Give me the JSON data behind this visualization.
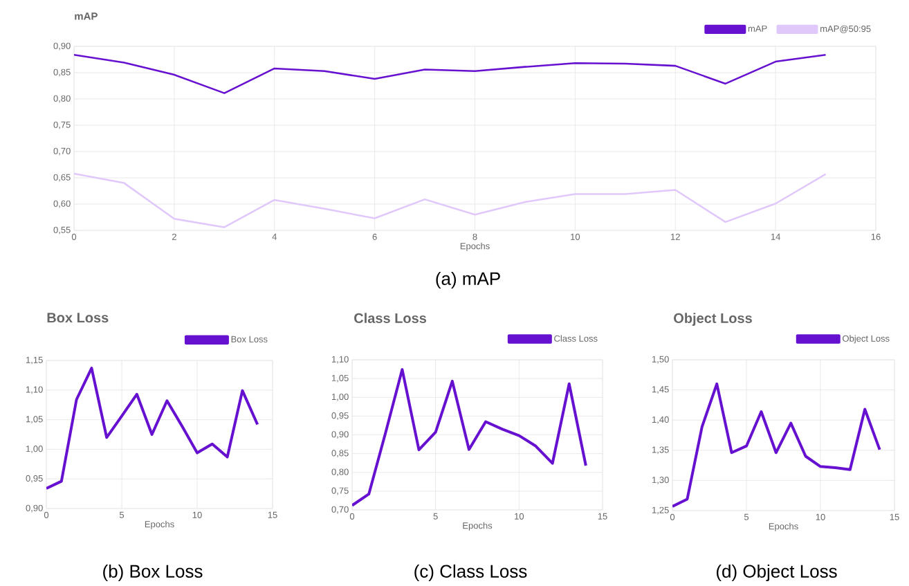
{
  "chart_data": [
    {
      "type": "line",
      "title": "mAP",
      "xlabel": "Epochs",
      "x": [
        0,
        1,
        2,
        3,
        4,
        5,
        6,
        7,
        8,
        9,
        10,
        11,
        12,
        13,
        14,
        15
      ],
      "series": [
        {
          "name": "mAP",
          "color": "#6610d0",
          "values": [
            0.884,
            0.869,
            0.846,
            0.811,
            0.858,
            0.853,
            0.838,
            0.856,
            0.853,
            0.861,
            0.868,
            0.867,
            0.863,
            0.829,
            0.871,
            0.884
          ]
        },
        {
          "name": "mAP@50:95",
          "color": "#e0c8fa",
          "values": [
            0.658,
            0.64,
            0.572,
            0.556,
            0.608,
            0.591,
            0.573,
            0.609,
            0.58,
            0.604,
            0.619,
            0.619,
            0.627,
            0.566,
            0.601,
            0.657
          ]
        }
      ],
      "xlim": [
        0,
        16
      ],
      "xticks": [
        0,
        2,
        4,
        6,
        8,
        10,
        12,
        14,
        16
      ],
      "ylim": [
        0.55,
        0.9
      ],
      "yticks": [
        {
          "value": 0.55,
          "label": "0,55"
        },
        {
          "value": 0.6,
          "label": "0,60"
        },
        {
          "value": 0.65,
          "label": "0,65"
        },
        {
          "value": 0.7,
          "label": "0,70"
        },
        {
          "value": 0.75,
          "label": "0,75"
        },
        {
          "value": 0.8,
          "label": "0,80"
        },
        {
          "value": 0.85,
          "label": "0,85"
        },
        {
          "value": 0.9,
          "label": "0,90"
        }
      ],
      "grid": true,
      "legend": "top right",
      "annotations": [
        "(a) mAP"
      ]
    },
    {
      "type": "line",
      "title": "Box Loss",
      "xlabel": "Epochs",
      "x": [
        0,
        1,
        2,
        3,
        4,
        5,
        6,
        7,
        8,
        9,
        10,
        11,
        12,
        13,
        14
      ],
      "series": [
        {
          "name": "Box Loss",
          "color": "#6610d0",
          "values": [
            0.934,
            0.946,
            1.084,
            1.137,
            1.02,
            1.056,
            1.093,
            1.025,
            1.082,
            1.039,
            0.994,
            1.009,
            0.987,
            1.099,
            1.042
          ]
        }
      ],
      "xlim": [
        0,
        15
      ],
      "xticks": [
        0,
        5,
        10,
        15
      ],
      "ylim": [
        0.9,
        1.15
      ],
      "yticks": [
        {
          "value": 0.9,
          "label": "0,90"
        },
        {
          "value": 0.95,
          "label": "0,95"
        },
        {
          "value": 1.0,
          "label": "1,00"
        },
        {
          "value": 1.05,
          "label": "1,05"
        },
        {
          "value": 1.1,
          "label": "1,10"
        },
        {
          "value": 1.15,
          "label": "1,15"
        }
      ],
      "grid": true,
      "legend": "top right",
      "annotations": [
        "(b) Box Loss"
      ]
    },
    {
      "type": "line",
      "title": "Class Loss",
      "xlabel": "Epochs",
      "x": [
        0,
        1,
        2,
        3,
        4,
        5,
        6,
        7,
        8,
        9,
        10,
        11,
        12,
        13,
        14
      ],
      "series": [
        {
          "name": "Class Loss",
          "color": "#6610d0",
          "values": [
            0.712,
            0.742,
            0.905,
            1.074,
            0.86,
            0.907,
            1.043,
            0.861,
            0.935,
            0.915,
            0.898,
            0.87,
            0.824,
            1.036,
            0.818
          ]
        }
      ],
      "xlim": [
        0,
        15
      ],
      "xticks": [
        0,
        5,
        10,
        15
      ],
      "ylim": [
        0.7,
        1.1
      ],
      "yticks": [
        {
          "value": 0.7,
          "label": "0,70"
        },
        {
          "value": 0.75,
          "label": "0,75"
        },
        {
          "value": 0.8,
          "label": "0,80"
        },
        {
          "value": 0.85,
          "label": "0,85"
        },
        {
          "value": 0.9,
          "label": "0,90"
        },
        {
          "value": 0.95,
          "label": "0,95"
        },
        {
          "value": 1.0,
          "label": "1,00"
        },
        {
          "value": 1.05,
          "label": "1,05"
        },
        {
          "value": 1.1,
          "label": "1,10"
        }
      ],
      "grid": true,
      "legend": "top right",
      "annotations": [
        "(c) Class Loss"
      ]
    },
    {
      "type": "line",
      "title": "Object Loss",
      "xlabel": "Epochs",
      "x": [
        0,
        1,
        2,
        3,
        4,
        5,
        6,
        7,
        8,
        9,
        10,
        11,
        12,
        13,
        14
      ],
      "series": [
        {
          "name": "Object Loss",
          "color": "#6610d0",
          "values": [
            1.257,
            1.269,
            1.389,
            1.46,
            1.346,
            1.357,
            1.414,
            1.346,
            1.395,
            1.34,
            1.323,
            1.321,
            1.318,
            1.418,
            1.351
          ]
        }
      ],
      "xlim": [
        0,
        15
      ],
      "xticks": [
        0,
        5,
        10,
        15
      ],
      "ylim": [
        1.25,
        1.5
      ],
      "yticks": [
        {
          "value": 1.25,
          "label": "1,25"
        },
        {
          "value": 1.3,
          "label": "1,30"
        },
        {
          "value": 1.35,
          "label": "1,35"
        },
        {
          "value": 1.4,
          "label": "1,40"
        },
        {
          "value": 1.45,
          "label": "1,45"
        },
        {
          "value": 1.5,
          "label": "1,50"
        }
      ],
      "grid": true,
      "legend": "top right",
      "annotations": [
        "(d) Object Loss"
      ]
    }
  ]
}
